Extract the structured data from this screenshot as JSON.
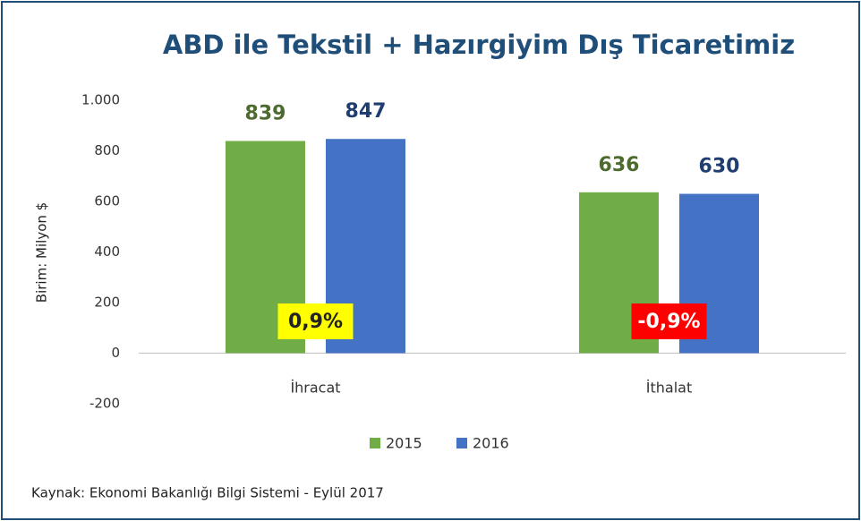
{
  "chart_data": {
    "type": "bar",
    "title": "ABD ile Tekstil + Hazırgiyim  Dış Ticaretimiz",
    "y_axis_label": "Birim: Milyon $",
    "categories": [
      "İhracat",
      "İthalat"
    ],
    "series": [
      {
        "name": "2015",
        "color": "#70ad47",
        "values": [
          839,
          636
        ]
      },
      {
        "name": "2016",
        "color": "#4472c4",
        "values": [
          847,
          630
        ]
      }
    ],
    "ylim": [
      -200,
      1000
    ],
    "yticks": [
      -200,
      0,
      200,
      400,
      600,
      800,
      {
        "value": 1000,
        "label": "1.000"
      }
    ],
    "annotations": [
      {
        "text": "0,9%",
        "color": "#ffff00"
      },
      {
        "text": "-0,9%",
        "color": "#ff0000"
      }
    ],
    "legend": "bottom",
    "source": "Kaynak: Ekonomi Bakanlığı Bilgi Sistemi - Eylül 2017"
  }
}
